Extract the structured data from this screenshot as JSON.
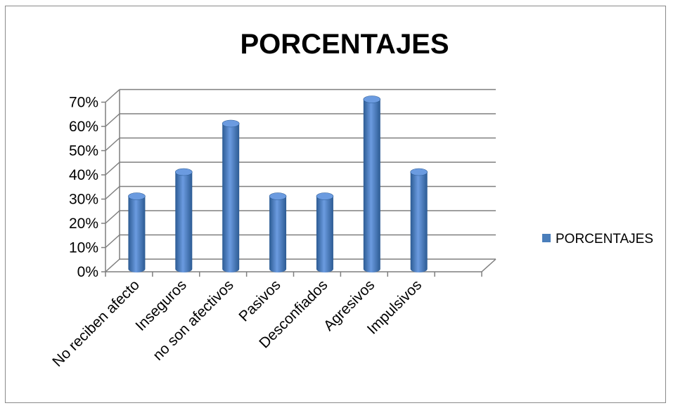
{
  "chart_data": {
    "type": "bar",
    "title": "PORCENTAJES",
    "categories": [
      "No reciben afecto",
      "Inseguros",
      "no son afectivos",
      "Pasivos",
      "Desconfiados",
      "Agresivos",
      "Impulsivos"
    ],
    "series": [
      {
        "name": "PORCENTAJES",
        "values": [
          30,
          40,
          60,
          30,
          30,
          70,
          40
        ]
      }
    ],
    "y_tick_labels": [
      "0%",
      "10%",
      "20%",
      "30%",
      "40%",
      "50%",
      "60%",
      "70%"
    ],
    "ylim": [
      0,
      70
    ],
    "y_unit": "%",
    "grid": true,
    "style_3d": true,
    "legend_position": "right",
    "colors": {
      "bar": "#4a7ebb",
      "bar_light": "#6b9be0",
      "bar_dark": "#2c5b93",
      "grid": "#7f7f7f"
    }
  }
}
